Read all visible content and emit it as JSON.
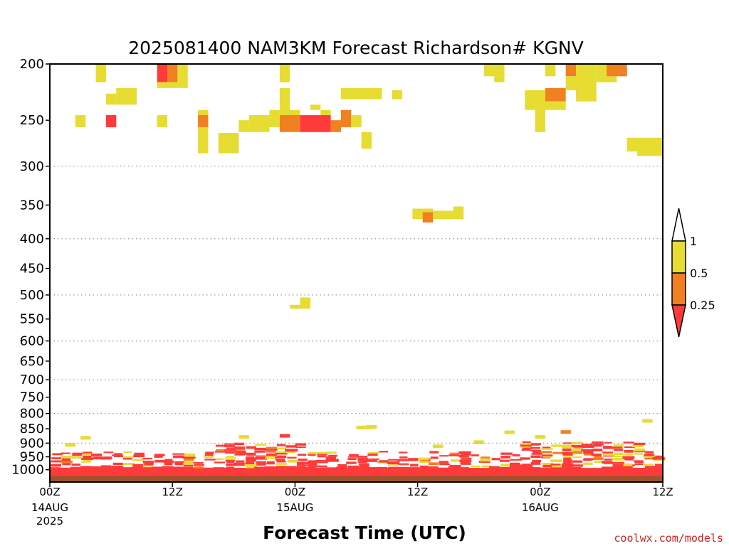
{
  "chart_data": {
    "type": "heatmap",
    "title": "2025081400 NAM3KM Forecast Richardson# KGNV",
    "xlabel": "Forecast Time (UTC)",
    "ylabel": "",
    "credit": "coolwx.com/models",
    "y_scale": "log-pressure",
    "ylim": [
      1050,
      200
    ],
    "xlim_hours": [
      0,
      60
    ],
    "y_ticks": [
      200,
      250,
      300,
      350,
      400,
      450,
      500,
      550,
      600,
      650,
      700,
      750,
      800,
      850,
      900,
      950,
      1000
    ],
    "y_gridlines": [
      300,
      400,
      500,
      600,
      700,
      800,
      900
    ],
    "x_ticks": [
      {
        "hour": 0,
        "label": "00Z",
        "sub": "14AUG",
        "sub2": "2025"
      },
      {
        "hour": 12,
        "label": "12Z",
        "sub": "",
        "sub2": ""
      },
      {
        "hour": 24,
        "label": "00Z",
        "sub": "15AUG",
        "sub2": ""
      },
      {
        "hour": 36,
        "label": "12Z",
        "sub": "",
        "sub2": ""
      },
      {
        "hour": 48,
        "label": "00Z",
        "sub": "16AUG",
        "sub2": ""
      },
      {
        "hour": 60,
        "label": "12Z",
        "sub": "",
        "sub2": ""
      }
    ],
    "legend": {
      "placement": "right",
      "labels": [
        "1",
        "0.5",
        "0.25"
      ],
      "bins": [
        {
          "range": "<0.25",
          "color": "#ff3a3a"
        },
        {
          "range": "0.25-0.5",
          "color": "#f08020"
        },
        {
          "range": "0.5-1",
          "color": "#e6dc32"
        },
        {
          "range": ">1",
          "color": "#ffffff"
        }
      ]
    },
    "colors": {
      "low": "#ff3a3a",
      "mid": "#f08020",
      "high": "#e6dc32",
      "ground": "#a0522d"
    },
    "cells": [
      {
        "t0": 4.5,
        "t1": 5.5,
        "p0": 200,
        "p1": 215,
        "c": "y"
      },
      {
        "t0": 10.5,
        "t1": 11.5,
        "p0": 200,
        "p1": 215,
        "c": "r"
      },
      {
        "t0": 11.5,
        "t1": 12.5,
        "p0": 200,
        "p1": 215,
        "c": "o"
      },
      {
        "t0": 10.5,
        "t1": 12.5,
        "p0": 215,
        "p1": 220,
        "c": "y"
      },
      {
        "t0": 12.5,
        "t1": 13.5,
        "p0": 200,
        "p1": 220,
        "c": "y"
      },
      {
        "t0": 5.5,
        "t1": 6.5,
        "p0": 225,
        "p1": 235,
        "c": "y"
      },
      {
        "t0": 6.5,
        "t1": 8.5,
        "p0": 220,
        "p1": 235,
        "c": "y"
      },
      {
        "t0": 2.5,
        "t1": 3.5,
        "p0": 245,
        "p1": 257,
        "c": "y"
      },
      {
        "t0": 5.5,
        "t1": 6.5,
        "p0": 245,
        "p1": 257,
        "c": "r"
      },
      {
        "t0": 10.5,
        "t1": 11.5,
        "p0": 245,
        "p1": 257,
        "c": "y"
      },
      {
        "t0": 14.5,
        "t1": 15.5,
        "p0": 240,
        "p1": 245,
        "c": "y"
      },
      {
        "t0": 14.5,
        "t1": 15.5,
        "p0": 245,
        "p1": 257,
        "c": "o"
      },
      {
        "t0": 14.5,
        "t1": 15.5,
        "p0": 257,
        "p1": 285,
        "c": "y"
      },
      {
        "t0": 16.5,
        "t1": 18.5,
        "p0": 263,
        "p1": 285,
        "c": "y"
      },
      {
        "t0": 18.5,
        "t1": 19.5,
        "p0": 250,
        "p1": 262,
        "c": "y"
      },
      {
        "t0": 19.5,
        "t1": 21.5,
        "p0": 245,
        "p1": 262,
        "c": "y"
      },
      {
        "t0": 21.5,
        "t1": 22.5,
        "p0": 240,
        "p1": 257,
        "c": "y"
      },
      {
        "t0": 22.5,
        "t1": 23.5,
        "p0": 200,
        "p1": 215,
        "c": "y"
      },
      {
        "t0": 22.5,
        "t1": 23.5,
        "p0": 220,
        "p1": 240,
        "c": "y"
      },
      {
        "t0": 22.5,
        "t1": 24.5,
        "p0": 240,
        "p1": 245,
        "c": "y"
      },
      {
        "t0": 22.5,
        "t1": 24.5,
        "p0": 245,
        "p1": 262,
        "c": "o"
      },
      {
        "t0": 24.5,
        "t1": 27.5,
        "p0": 245,
        "p1": 262,
        "c": "r"
      },
      {
        "t0": 25.5,
        "t1": 26.5,
        "p0": 235,
        "p1": 240,
        "c": "y"
      },
      {
        "t0": 26.5,
        "t1": 27.5,
        "p0": 240,
        "p1": 245,
        "c": "y"
      },
      {
        "t0": 27.5,
        "t1": 28.5,
        "p0": 250,
        "p1": 262,
        "c": "o"
      },
      {
        "t0": 28.5,
        "t1": 29.5,
        "p0": 240,
        "p1": 257,
        "c": "o"
      },
      {
        "t0": 29.5,
        "t1": 30.5,
        "p0": 245,
        "p1": 257,
        "c": "y"
      },
      {
        "t0": 28.5,
        "t1": 31.5,
        "p0": 220,
        "p1": 230,
        "c": "y"
      },
      {
        "t0": 31.5,
        "t1": 32.5,
        "p0": 220,
        "p1": 230,
        "c": "y"
      },
      {
        "t0": 30.5,
        "t1": 31.5,
        "p0": 262,
        "p1": 280,
        "c": "y"
      },
      {
        "t0": 33.5,
        "t1": 34.5,
        "p0": 222,
        "p1": 230,
        "c": "y"
      },
      {
        "t0": 35.5,
        "t1": 37.5,
        "p0": 355,
        "p1": 370,
        "c": "y"
      },
      {
        "t0": 36.5,
        "t1": 37.5,
        "p0": 360,
        "p1": 375,
        "c": "o"
      },
      {
        "t0": 37.5,
        "t1": 39.5,
        "p0": 358,
        "p1": 370,
        "c": "y"
      },
      {
        "t0": 39.5,
        "t1": 40.5,
        "p0": 352,
        "p1": 370,
        "c": "y"
      },
      {
        "t0": 23.5,
        "t1": 24.5,
        "p0": 520,
        "p1": 528,
        "c": "y"
      },
      {
        "t0": 24.5,
        "t1": 25.5,
        "p0": 505,
        "p1": 528,
        "c": "y"
      },
      {
        "t0": 42.5,
        "t1": 44.5,
        "p0": 200,
        "p1": 210,
        "c": "y"
      },
      {
        "t0": 43.5,
        "t1": 44.5,
        "p0": 210,
        "p1": 215,
        "c": "y"
      },
      {
        "t0": 46.5,
        "t1": 48.5,
        "p0": 222,
        "p1": 240,
        "c": "y"
      },
      {
        "t0": 47.5,
        "t1": 48.5,
        "p0": 240,
        "p1": 262,
        "c": "y"
      },
      {
        "t0": 48.5,
        "t1": 49.5,
        "p0": 200,
        "p1": 210,
        "c": "y"
      },
      {
        "t0": 48.5,
        "t1": 50.5,
        "p0": 220,
        "p1": 232,
        "c": "o"
      },
      {
        "t0": 48.5,
        "t1": 50.5,
        "p0": 232,
        "p1": 240,
        "c": "y"
      },
      {
        "t0": 50.5,
        "t1": 51.5,
        "p0": 200,
        "p1": 210,
        "c": "o"
      },
      {
        "t0": 50.5,
        "t1": 51.5,
        "p0": 210,
        "p1": 222,
        "c": "y"
      },
      {
        "t0": 51.5,
        "t1": 53.5,
        "p0": 200,
        "p1": 232,
        "c": "y"
      },
      {
        "t0": 53.5,
        "t1": 54.5,
        "p0": 200,
        "p1": 210,
        "c": "y"
      },
      {
        "t0": 53.5,
        "t1": 55.5,
        "p0": 210,
        "p1": 215,
        "c": "y"
      },
      {
        "t0": 54.5,
        "t1": 56.5,
        "p0": 200,
        "p1": 210,
        "c": "o"
      },
      {
        "t0": 56.5,
        "t1": 58.5,
        "p0": 268,
        "p1": 283,
        "c": "y"
      },
      {
        "t0": 57.5,
        "t1": 58.5,
        "p0": 283,
        "p1": 288,
        "c": "y"
      },
      {
        "t0": 58.5,
        "t1": 60,
        "p0": 268,
        "p1": 288,
        "c": "y"
      }
    ],
    "lowlevel": {
      "ground_top_hpa": 1025,
      "p_bottom": 1025,
      "p_top_base": 930,
      "seed": 11
    }
  }
}
